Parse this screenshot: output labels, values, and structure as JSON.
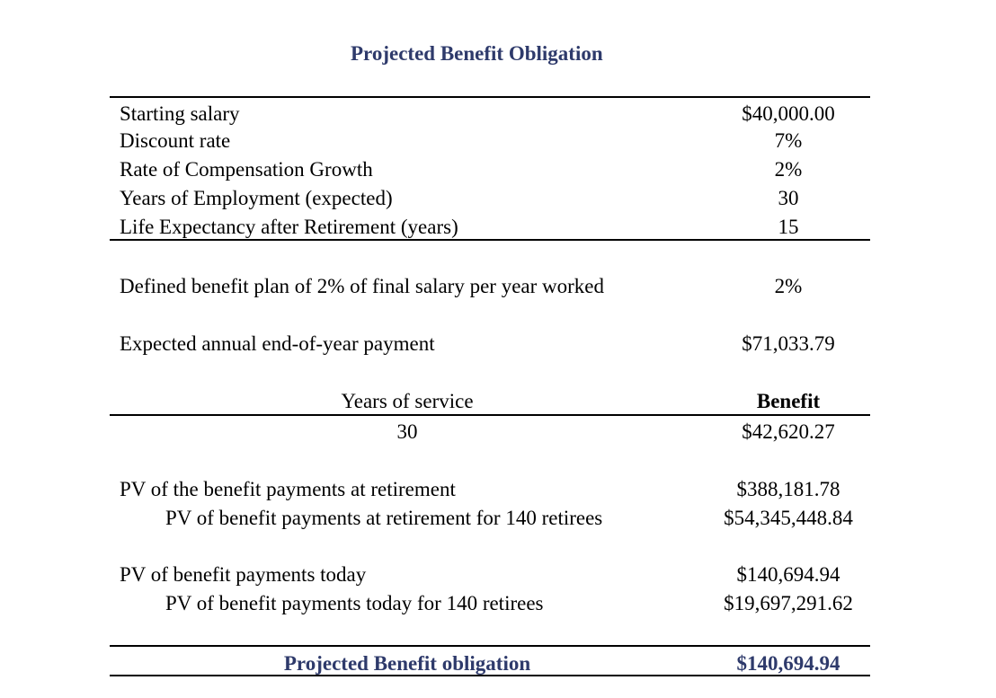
{
  "title": "Projected Benefit Obligation",
  "inputs": [
    {
      "label": "Starting salary",
      "value": "$40,000.00"
    },
    {
      "label": "Discount rate",
      "value": "7%"
    },
    {
      "label": "Rate of Compensation Growth",
      "value": "2%"
    },
    {
      "label": "Years of Employment (expected)",
      "value": "30"
    },
    {
      "label": "Life Expectancy after Retirement (years)",
      "value": "15"
    }
  ],
  "plan": {
    "label": "Defined benefit plan of 2% of final salary per year worked",
    "value": "2%"
  },
  "payment": {
    "label": "Expected annual end-of-year payment",
    "value": "$71,033.79"
  },
  "service_table": {
    "col1_header": "Years of service",
    "col2_header": "Benefit",
    "col1_value": "30",
    "col2_value": "$42,620.27"
  },
  "pv_retirement": {
    "label": "PV of the benefit payments at retirement",
    "value": "$388,181.78",
    "sub_label": "PV of benefit payments at retirement for 140 retirees",
    "sub_value": "$54,345,448.84"
  },
  "pv_today": {
    "label": "PV of benefit payments today",
    "value": "$140,694.94",
    "sub_label": "PV of benefit payments today for 140 retirees",
    "sub_value": "$19,697,291.62"
  },
  "footer": {
    "label": "Projected Benefit obligation",
    "value": "$140,694.94"
  }
}
